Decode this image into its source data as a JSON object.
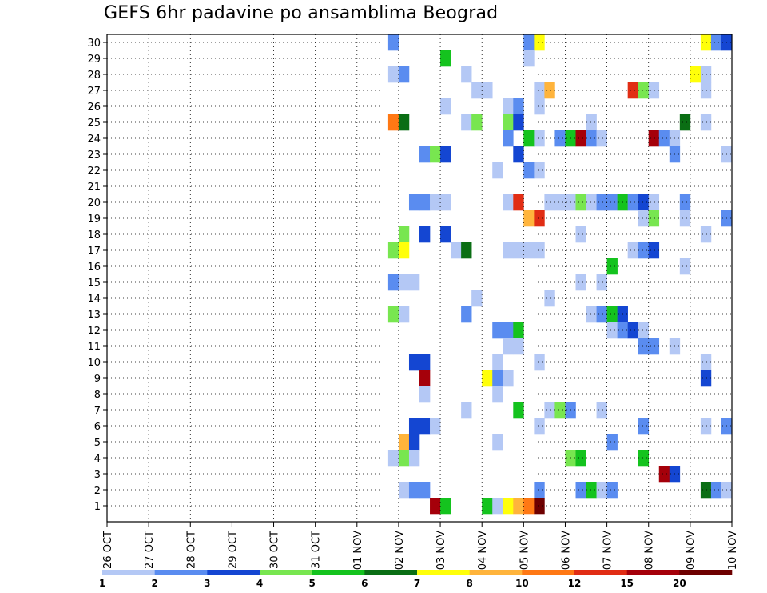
{
  "chart_data": {
    "type": "heatmap",
    "title": "GEFS 6hr padavine po ansamblima Beograd",
    "x_tick_labels": [
      "26 OCT",
      "27 OCT",
      "28 OCT",
      "29 OCT",
      "30 OCT",
      "31 OCT",
      "01 NOV",
      "02 NOV",
      "03 NOV",
      "04 NOV",
      "05 NOV",
      "06 NOV",
      "07 NOV",
      "08 NOV",
      "09 NOV",
      "10 NOV"
    ],
    "y_tick_labels": [
      "1",
      "2",
      "3",
      "4",
      "5",
      "6",
      "7",
      "8",
      "9",
      "10",
      "11",
      "12",
      "13",
      "14",
      "15",
      "16",
      "17",
      "18",
      "19",
      "20",
      "21",
      "22",
      "23",
      "24",
      "25",
      "26",
      "27",
      "28",
      "29",
      "30"
    ],
    "xlim": [
      0,
      60
    ],
    "ylim": [
      0,
      30
    ],
    "grid": true,
    "colorbar": {
      "labels": [
        "1",
        "2",
        "3",
        "4",
        "5",
        "6",
        "7",
        "8",
        "10",
        "12",
        "15",
        "20"
      ],
      "colors": [
        "#b4c8f5",
        "#5a8cf0",
        "#1446d2",
        "#78e650",
        "#14c31e",
        "#0a6e14",
        "#ffff0a",
        "#ffb43c",
        "#ff7814",
        "#e12d14",
        "#a5000a",
        "#6e0000"
      ]
    },
    "cells": [
      [
        27,
        30,
        2
      ],
      [
        40,
        30,
        2
      ],
      [
        41,
        30,
        7
      ],
      [
        57,
        30,
        7
      ],
      [
        58,
        30,
        2
      ],
      [
        59,
        30,
        3
      ],
      [
        32,
        29,
        5
      ],
      [
        40,
        29,
        1
      ],
      [
        27,
        28,
        1
      ],
      [
        28,
        28,
        2
      ],
      [
        34,
        28,
        1
      ],
      [
        56,
        28,
        7
      ],
      [
        57,
        28,
        1
      ],
      [
        35,
        27,
        1
      ],
      [
        36,
        27,
        1
      ],
      [
        41,
        27,
        1
      ],
      [
        42,
        27,
        8
      ],
      [
        50,
        27,
        10
      ],
      [
        51,
        27,
        4
      ],
      [
        52,
        27,
        1
      ],
      [
        57,
        27,
        1
      ],
      [
        32,
        26,
        1
      ],
      [
        38,
        26,
        1
      ],
      [
        39,
        26,
        2
      ],
      [
        41,
        26,
        1
      ],
      [
        27,
        25,
        9
      ],
      [
        28,
        25,
        6
      ],
      [
        34,
        25,
        1
      ],
      [
        35,
        25,
        4
      ],
      [
        38,
        25,
        4
      ],
      [
        39,
        25,
        3
      ],
      [
        46,
        25,
        1
      ],
      [
        55,
        25,
        6
      ],
      [
        57,
        25,
        1
      ],
      [
        38,
        24,
        2
      ],
      [
        40,
        24,
        5
      ],
      [
        41,
        24,
        1
      ],
      [
        43,
        24,
        2
      ],
      [
        44,
        24,
        5
      ],
      [
        45,
        24,
        11
      ],
      [
        46,
        24,
        2
      ],
      [
        47,
        24,
        1
      ],
      [
        52,
        24,
        11
      ],
      [
        53,
        24,
        2
      ],
      [
        54,
        24,
        1
      ],
      [
        30,
        23,
        2
      ],
      [
        31,
        23,
        4
      ],
      [
        32,
        23,
        3
      ],
      [
        39,
        23,
        3
      ],
      [
        54,
        23,
        2
      ],
      [
        59,
        23,
        1
      ],
      [
        37,
        22,
        1
      ],
      [
        40,
        22,
        2
      ],
      [
        41,
        22,
        1
      ],
      [
        29,
        20,
        2
      ],
      [
        30,
        20,
        2
      ],
      [
        31,
        20,
        1
      ],
      [
        32,
        20,
        1
      ],
      [
        38,
        20,
        1
      ],
      [
        39,
        20,
        10
      ],
      [
        42,
        20,
        1
      ],
      [
        43,
        20,
        1
      ],
      [
        44,
        20,
        1
      ],
      [
        45,
        20,
        4
      ],
      [
        46,
        20,
        1
      ],
      [
        47,
        20,
        2
      ],
      [
        48,
        20,
        2
      ],
      [
        49,
        20,
        5
      ],
      [
        50,
        20,
        2
      ],
      [
        51,
        20,
        3
      ],
      [
        52,
        20,
        1
      ],
      [
        55,
        20,
        2
      ],
      [
        40,
        19,
        8
      ],
      [
        41,
        19,
        10
      ],
      [
        51,
        19,
        1
      ],
      [
        52,
        19,
        4
      ],
      [
        55,
        19,
        1
      ],
      [
        59,
        19,
        2
      ],
      [
        28,
        18,
        4
      ],
      [
        30,
        18,
        3
      ],
      [
        32,
        18,
        3
      ],
      [
        45,
        18,
        1
      ],
      [
        57,
        18,
        1
      ],
      [
        27,
        17,
        4
      ],
      [
        28,
        17,
        7
      ],
      [
        33,
        17,
        1
      ],
      [
        34,
        17,
        6
      ],
      [
        38,
        17,
        1
      ],
      [
        39,
        17,
        1
      ],
      [
        40,
        17,
        1
      ],
      [
        41,
        17,
        1
      ],
      [
        50,
        17,
        1
      ],
      [
        51,
        17,
        2
      ],
      [
        52,
        17,
        3
      ],
      [
        48,
        16,
        5
      ],
      [
        55,
        16,
        1
      ],
      [
        27,
        15,
        2
      ],
      [
        28,
        15,
        1
      ],
      [
        29,
        15,
        1
      ],
      [
        45,
        15,
        1
      ],
      [
        47,
        15,
        1
      ],
      [
        35,
        14,
        1
      ],
      [
        42,
        14,
        1
      ],
      [
        27,
        13,
        4
      ],
      [
        28,
        13,
        1
      ],
      [
        34,
        13,
        2
      ],
      [
        46,
        13,
        1
      ],
      [
        47,
        13,
        2
      ],
      [
        48,
        13,
        5
      ],
      [
        49,
        13,
        3
      ],
      [
        37,
        12,
        2
      ],
      [
        38,
        12,
        2
      ],
      [
        39,
        12,
        5
      ],
      [
        48,
        12,
        1
      ],
      [
        49,
        12,
        2
      ],
      [
        50,
        12,
        3
      ],
      [
        51,
        12,
        1
      ],
      [
        38,
        11,
        1
      ],
      [
        39,
        11,
        1
      ],
      [
        51,
        11,
        2
      ],
      [
        52,
        11,
        2
      ],
      [
        54,
        11,
        1
      ],
      [
        29,
        10,
        3
      ],
      [
        30,
        10,
        3
      ],
      [
        37,
        10,
        1
      ],
      [
        41,
        10,
        1
      ],
      [
        57,
        10,
        1
      ],
      [
        30,
        9,
        11
      ],
      [
        36,
        9,
        7
      ],
      [
        37,
        9,
        2
      ],
      [
        38,
        9,
        1
      ],
      [
        57,
        9,
        3
      ],
      [
        30,
        8,
        1
      ],
      [
        37,
        8,
        1
      ],
      [
        34,
        7,
        1
      ],
      [
        39,
        7,
        5
      ],
      [
        42,
        7,
        1
      ],
      [
        43,
        7,
        4
      ],
      [
        44,
        7,
        2
      ],
      [
        47,
        7,
        1
      ],
      [
        29,
        6,
        3
      ],
      [
        30,
        6,
        3
      ],
      [
        31,
        6,
        1
      ],
      [
        41,
        6,
        1
      ],
      [
        51,
        6,
        2
      ],
      [
        57,
        6,
        1
      ],
      [
        59,
        6,
        2
      ],
      [
        28,
        5,
        8
      ],
      [
        29,
        5,
        3
      ],
      [
        37,
        5,
        1
      ],
      [
        48,
        5,
        2
      ],
      [
        27,
        4,
        1
      ],
      [
        28,
        4,
        4
      ],
      [
        29,
        4,
        1
      ],
      [
        44,
        4,
        4
      ],
      [
        45,
        4,
        5
      ],
      [
        51,
        4,
        5
      ],
      [
        53,
        3,
        11
      ],
      [
        54,
        3,
        3
      ],
      [
        28,
        2,
        1
      ],
      [
        29,
        2,
        2
      ],
      [
        30,
        2,
        2
      ],
      [
        41,
        2,
        2
      ],
      [
        45,
        2,
        2
      ],
      [
        46,
        2,
        5
      ],
      [
        47,
        2,
        1
      ],
      [
        48,
        2,
        2
      ],
      [
        57,
        2,
        6
      ],
      [
        58,
        2,
        2
      ],
      [
        59,
        2,
        1
      ],
      [
        31,
        1,
        11
      ],
      [
        32,
        1,
        5
      ],
      [
        36,
        1,
        5
      ],
      [
        37,
        1,
        1
      ],
      [
        38,
        1,
        7
      ],
      [
        39,
        1,
        8
      ],
      [
        40,
        1,
        9
      ],
      [
        41,
        1,
        12
      ]
    ]
  }
}
